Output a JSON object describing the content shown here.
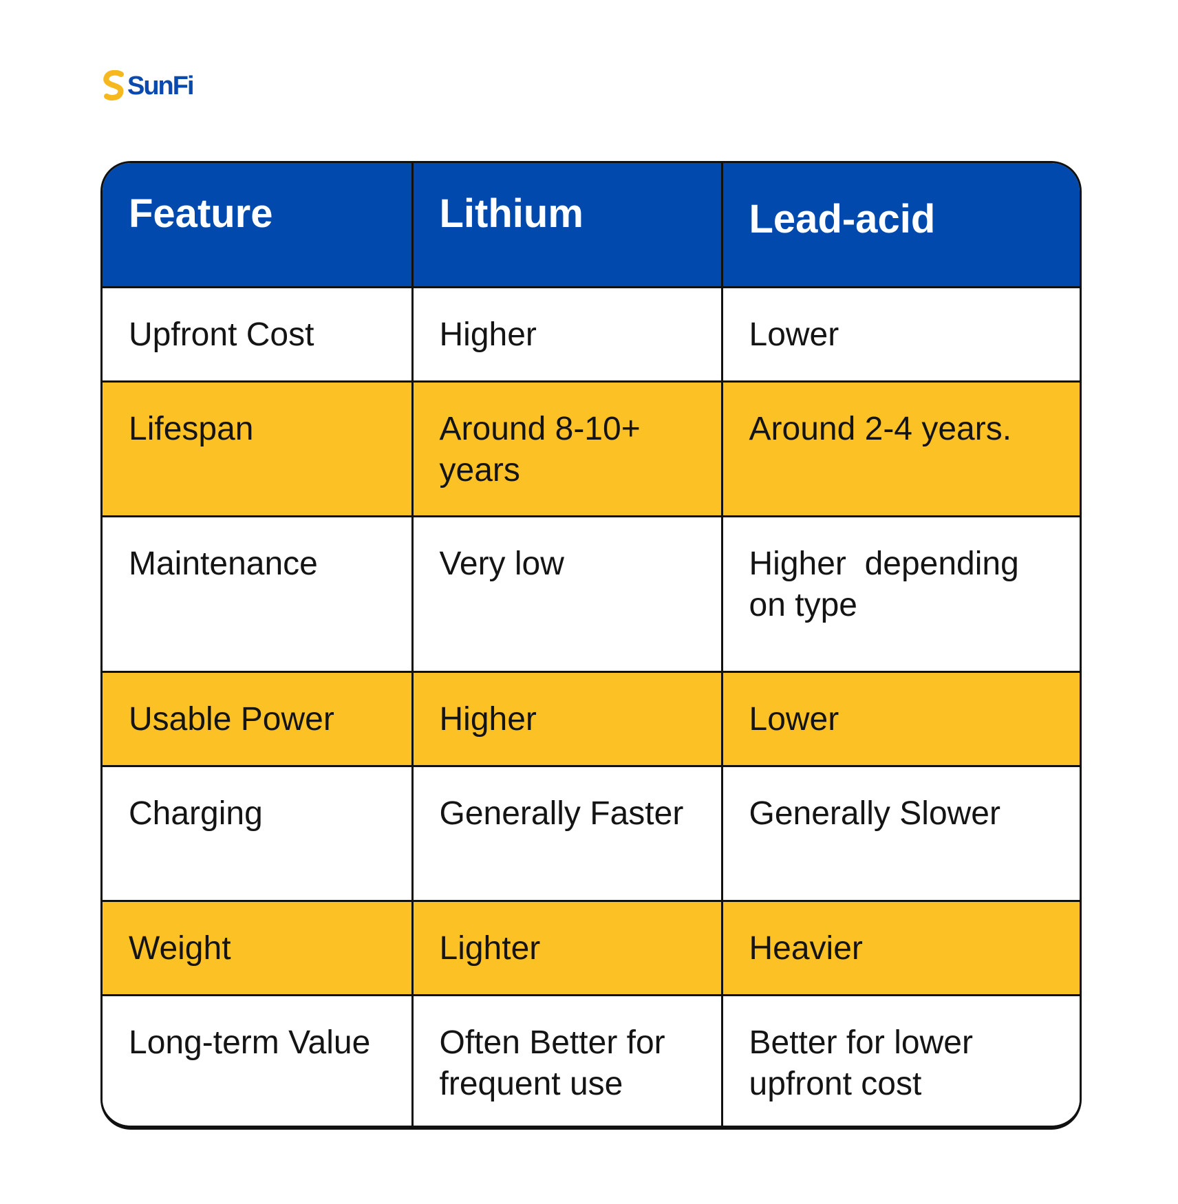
{
  "brand": {
    "name": "SunFi",
    "colors": {
      "primary_blue": "#0149ad",
      "accent_yellow": "#fcc124",
      "logo_mark_yellow": "#f5b91f"
    }
  },
  "table": {
    "headers": [
      "Feature",
      "Lithium",
      "Lead-acid"
    ],
    "rows": [
      [
        "Upfront Cost",
        "Higher",
        "Lower"
      ],
      [
        "Lifespan",
        "Around 8-10+ years",
        "Around 2-4 years."
      ],
      [
        "Maintenance",
        "Very low",
        "Higher  depending on type"
      ],
      [
        "Usable Power",
        "Higher",
        "Lower"
      ],
      [
        "Charging",
        "Generally Faster",
        "Generally Slower"
      ],
      [
        "Weight",
        "Lighter",
        "Heavier"
      ],
      [
        "Long-term Value",
        "Often Better for frequent use",
        "Better for lower upfront cost"
      ]
    ]
  }
}
